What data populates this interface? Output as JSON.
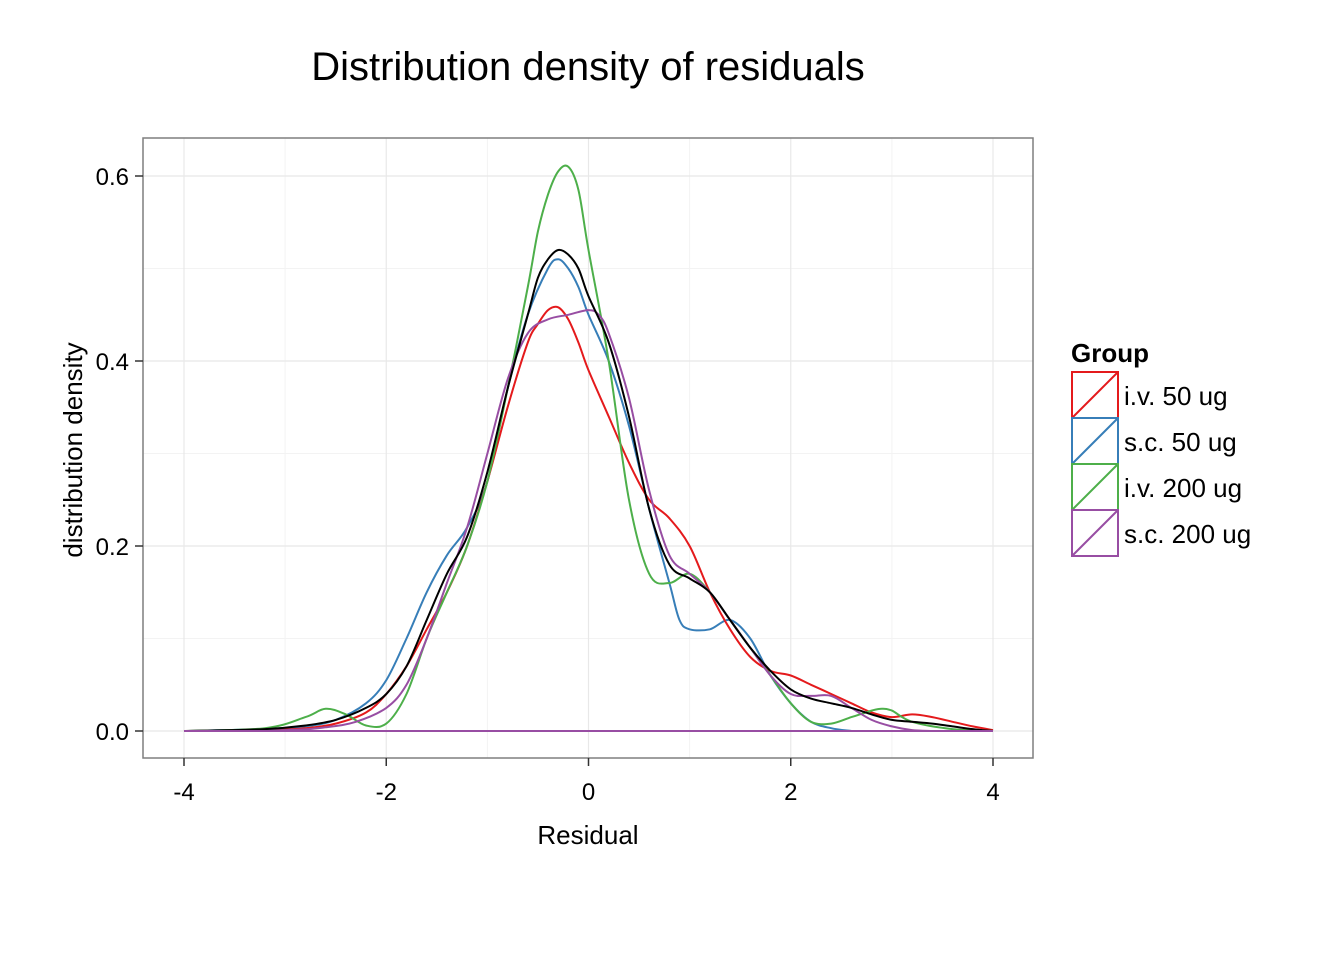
{
  "chart_data": {
    "type": "line",
    "title": "Distribution density of residuals",
    "xlabel": "Residual",
    "ylabel": "distribution density",
    "xlim": [
      -4,
      4
    ],
    "ylim": [
      0,
      0.6
    ],
    "xticks": [
      "-4",
      "-2",
      "0",
      "2",
      "4"
    ],
    "yticks": [
      "0.0",
      "0.2",
      "0.4",
      "0.6"
    ],
    "grid": true,
    "legend": {
      "title": "Group",
      "position": "right",
      "entries": [
        "i.v. 50 ug",
        "s.c. 50 ug",
        "i.v. 200 ug",
        "s.c. 200 ug"
      ]
    },
    "series": [
      {
        "name": "i.v. 50 ug",
        "color": "#e41a1c",
        "x": [
          -4,
          -3.2,
          -2.8,
          -2.5,
          -2.2,
          -2,
          -1.8,
          -1.6,
          -1.4,
          -1.2,
          -1,
          -0.8,
          -0.6,
          -0.5,
          -0.4,
          -0.3,
          -0.2,
          -0.1,
          0,
          0.2,
          0.4,
          0.6,
          0.8,
          1,
          1.2,
          1.4,
          1.6,
          1.8,
          2,
          2.2,
          2.4,
          2.6,
          2.8,
          3,
          3.2,
          3.4,
          3.6,
          3.8,
          4
        ],
        "y": [
          0,
          0.001,
          0.003,
          0.008,
          0.02,
          0.04,
          0.07,
          0.11,
          0.15,
          0.2,
          0.27,
          0.35,
          0.42,
          0.44,
          0.455,
          0.458,
          0.445,
          0.42,
          0.39,
          0.34,
          0.29,
          0.25,
          0.23,
          0.2,
          0.15,
          0.11,
          0.08,
          0.065,
          0.06,
          0.05,
          0.04,
          0.03,
          0.02,
          0.015,
          0.018,
          0.015,
          0.01,
          0.005,
          0.001
        ]
      },
      {
        "name": "s.c. 50 ug",
        "color": "#377eb8",
        "x": [
          -4,
          -3.2,
          -2.8,
          -2.5,
          -2.2,
          -2,
          -1.8,
          -1.6,
          -1.4,
          -1.2,
          -1,
          -0.8,
          -0.6,
          -0.4,
          -0.3,
          -0.2,
          -0.1,
          0,
          0.2,
          0.4,
          0.6,
          0.8,
          0.9,
          1,
          1.2,
          1.4,
          1.6,
          1.8,
          2,
          2.2,
          2.4,
          2.6
        ],
        "y": [
          0,
          0.002,
          0.005,
          0.012,
          0.03,
          0.055,
          0.1,
          0.15,
          0.19,
          0.22,
          0.27,
          0.37,
          0.45,
          0.5,
          0.51,
          0.5,
          0.48,
          0.45,
          0.4,
          0.33,
          0.24,
          0.16,
          0.12,
          0.11,
          0.11,
          0.12,
          0.1,
          0.06,
          0.03,
          0.01,
          0.003,
          0
        ]
      },
      {
        "name": "i.v. 200 ug",
        "color": "#4daf4a",
        "x": [
          -4,
          -3.2,
          -2.8,
          -2.6,
          -2.4,
          -2.2,
          -2,
          -1.8,
          -1.6,
          -1.4,
          -1.2,
          -1,
          -0.8,
          -0.6,
          -0.5,
          -0.4,
          -0.3,
          -0.2,
          -0.1,
          0,
          0.2,
          0.4,
          0.6,
          0.8,
          1,
          1.2,
          1.4,
          1.6,
          1.8,
          2,
          2.2,
          2.4,
          2.6,
          2.8,
          2.9,
          3,
          3.2,
          3.6,
          4
        ],
        "y": [
          0,
          0.003,
          0.015,
          0.024,
          0.018,
          0.006,
          0.008,
          0.04,
          0.1,
          0.15,
          0.2,
          0.27,
          0.37,
          0.48,
          0.54,
          0.58,
          0.605,
          0.61,
          0.585,
          0.52,
          0.4,
          0.25,
          0.17,
          0.16,
          0.17,
          0.15,
          0.12,
          0.09,
          0.06,
          0.03,
          0.01,
          0.008,
          0.015,
          0.022,
          0.024,
          0.022,
          0.01,
          0.002,
          0
        ]
      },
      {
        "name": "s.c. 200 ug",
        "color": "#984ea3",
        "x": [
          -4,
          -3,
          -2.6,
          -2.3,
          -2,
          -1.8,
          -1.6,
          -1.4,
          -1.2,
          -1,
          -0.8,
          -0.6,
          -0.4,
          -0.2,
          0,
          0.1,
          0.2,
          0.4,
          0.6,
          0.8,
          1,
          1.2,
          1.4,
          1.6,
          1.8,
          2,
          2.2,
          2.4,
          2.6,
          2.8,
          3,
          3.2,
          3.4
        ],
        "y": [
          0,
          0.001,
          0.004,
          0.01,
          0.025,
          0.05,
          0.1,
          0.16,
          0.22,
          0.3,
          0.38,
          0.43,
          0.445,
          0.45,
          0.455,
          0.45,
          0.43,
          0.36,
          0.26,
          0.19,
          0.17,
          0.15,
          0.12,
          0.09,
          0.06,
          0.04,
          0.038,
          0.038,
          0.025,
          0.012,
          0.005,
          0.001,
          0
        ]
      },
      {
        "name": "",
        "color": "#000000",
        "x": [
          -4,
          -3.2,
          -2.8,
          -2.5,
          -2.2,
          -2,
          -1.8,
          -1.6,
          -1.4,
          -1.2,
          -1,
          -0.8,
          -0.6,
          -0.5,
          -0.4,
          -0.3,
          -0.2,
          -0.1,
          0,
          0.2,
          0.4,
          0.6,
          0.8,
          1,
          1.2,
          1.4,
          1.6,
          1.8,
          2,
          2.2,
          2.4,
          2.6,
          2.8,
          3,
          3.2,
          3.4,
          3.6,
          3.8,
          4
        ],
        "y": [
          0,
          0.002,
          0.006,
          0.012,
          0.025,
          0.04,
          0.07,
          0.12,
          0.17,
          0.21,
          0.28,
          0.37,
          0.45,
          0.49,
          0.51,
          0.52,
          0.515,
          0.5,
          0.47,
          0.42,
          0.34,
          0.24,
          0.18,
          0.165,
          0.15,
          0.12,
          0.09,
          0.065,
          0.045,
          0.035,
          0.03,
          0.025,
          0.018,
          0.012,
          0.01,
          0.008,
          0.005,
          0.002,
          0
        ]
      }
    ],
    "baseline": {
      "color": "#984ea3",
      "y": 0,
      "x": [
        -4,
        4
      ]
    }
  }
}
